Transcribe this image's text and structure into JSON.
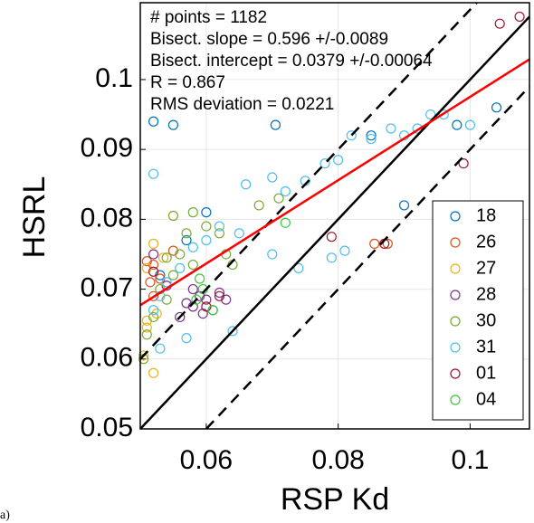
{
  "chart_data": {
    "type": "scatter",
    "xlabel": "RSP Kd",
    "ylabel": "HSRL",
    "panel_label": "a)",
    "xlim": [
      0.05,
      0.109
    ],
    "ylim": [
      0.05,
      0.111
    ],
    "xticks": [
      0.06,
      0.08,
      0.1
    ],
    "yticks": [
      0.05,
      0.06,
      0.07,
      0.08,
      0.09,
      0.1
    ],
    "grid": true,
    "legend": "east",
    "annotations": [
      "# points = 1182",
      "Bisect. slope = 0.596 +/-0.0089",
      "Bisect. intercept = 0.0379 +/-0.00064",
      "R = 0.867",
      "RMS deviation = 0.0221"
    ],
    "series": [
      {
        "name": "18",
        "color": "#0072BD",
        "x": [
          0.052,
          0.055,
          0.104,
          0.09,
          0.0705,
          0.085,
          0.098,
          0.057,
          0.06,
          0.053
        ],
        "values": [
          0.094,
          0.0935,
          0.096,
          0.082,
          0.0935,
          0.092,
          0.0935,
          0.077,
          0.081,
          0.072
        ]
      },
      {
        "name": "26",
        "color": "#D95319",
        "x": [
          0.051,
          0.052,
          0.0855,
          0.0875,
          0.0515,
          0.053,
          0.052,
          0.055
        ],
        "values": [
          0.074,
          0.0735,
          0.0765,
          0.0765,
          0.071,
          0.0715,
          0.069,
          0.0755
        ]
      },
      {
        "name": "27",
        "color": "#EDB120",
        "x": [
          0.0505,
          0.052,
          0.051,
          0.0525,
          0.051,
          0.052,
          0.0535,
          0.051
        ],
        "values": [
          0.0605,
          0.058,
          0.0655,
          0.0665,
          0.073,
          0.0765,
          0.0745,
          0.0645
        ]
      },
      {
        "name": "28",
        "color": "#7E2F8E",
        "x": [
          0.057,
          0.058,
          0.059,
          0.06,
          0.061,
          0.062,
          0.056,
          0.058,
          0.063,
          0.0595,
          0.052,
          0.054
        ],
        "values": [
          0.068,
          0.0675,
          0.069,
          0.0685,
          0.067,
          0.0695,
          0.066,
          0.07,
          0.0685,
          0.0665,
          0.075,
          0.0705
        ]
      },
      {
        "name": "30",
        "color": "#77AC30",
        "x": [
          0.051,
          0.0505,
          0.052,
          0.053,
          0.055,
          0.056,
          0.057,
          0.058,
          0.06,
          0.055,
          0.062,
          0.063,
          0.064,
          0.068,
          0.071,
          0.058,
          0.054,
          0.054
        ],
        "values": [
          0.0635,
          0.06,
          0.066,
          0.07,
          0.072,
          0.075,
          0.078,
          0.081,
          0.079,
          0.0805,
          0.078,
          0.075,
          0.0735,
          0.082,
          0.083,
          0.0735,
          0.0745,
          0.0685
        ]
      },
      {
        "name": "31",
        "color": "#4DBEEE",
        "x": [
          0.052,
          0.053,
          0.054,
          0.056,
          0.058,
          0.06,
          0.062,
          0.065,
          0.066,
          0.07,
          0.072,
          0.075,
          0.078,
          0.08,
          0.082,
          0.085,
          0.088,
          0.09,
          0.092,
          0.094,
          0.096,
          0.1,
          0.079,
          0.074,
          0.07,
          0.052,
          0.057,
          0.053,
          0.064,
          0.081
        ],
        "values": [
          0.067,
          0.069,
          0.071,
          0.073,
          0.076,
          0.077,
          0.079,
          0.078,
          0.085,
          0.086,
          0.084,
          0.0855,
          0.088,
          0.0885,
          0.092,
          0.0915,
          0.093,
          0.092,
          0.093,
          0.095,
          0.095,
          0.0935,
          0.0745,
          0.073,
          0.075,
          0.0865,
          0.063,
          0.0615,
          0.064,
          0.0755
        ]
      },
      {
        "name": "01",
        "color": "#A2142F",
        "x": [
          0.1045,
          0.1075,
          0.099,
          0.079,
          0.087,
          0.06,
          0.062,
          0.052
        ],
        "values": [
          0.108,
          0.109,
          0.088,
          0.0775,
          0.0765,
          0.0675,
          0.069,
          0.0725
        ]
      },
      {
        "name": "04",
        "color": "#3BC93B",
        "x": [
          0.0585,
          0.0595,
          0.061,
          0.072,
          0.059
        ],
        "values": [
          0.0685,
          0.07,
          0.067,
          0.0795,
          0.0715
        ]
      }
    ],
    "lines": [
      {
        "color": "#000000",
        "dash": false,
        "x": [
          0.05,
          0.109
        ],
        "values": [
          0.05,
          0.109
        ]
      },
      {
        "color": "#000000",
        "dash": true,
        "x": [
          0.05,
          0.101
        ],
        "values": [
          0.06,
          0.111
        ]
      },
      {
        "color": "#000000",
        "dash": true,
        "x": [
          0.06,
          0.109
        ],
        "values": [
          0.05,
          0.099
        ]
      },
      {
        "color": "#FF0000",
        "dash": false,
        "x": [
          0.05,
          0.109
        ],
        "values": [
          0.0677,
          0.1029
        ]
      }
    ]
  }
}
